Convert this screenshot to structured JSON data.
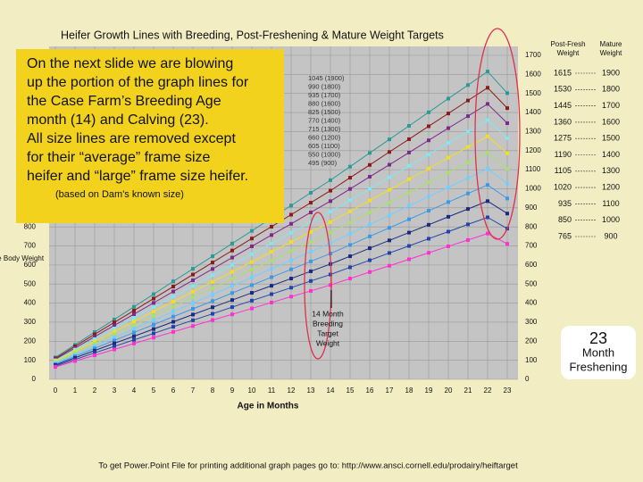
{
  "chart_data": {
    "type": "line",
    "title": "Heifer Growth Lines with Breeding, Post-Freshening & Mature Weight Targets",
    "x_label": "Age in Months",
    "y_label": "Live Body Weight",
    "x": [
      0,
      1,
      2,
      3,
      4,
      5,
      6,
      7,
      8,
      9,
      10,
      11,
      12,
      13,
      14,
      15,
      16,
      17,
      18,
      19,
      20,
      21,
      22,
      23
    ],
    "xlim": [
      0,
      23
    ],
    "xticks": [
      0,
      1,
      2,
      3,
      4,
      5,
      6,
      7,
      8,
      9,
      10,
      11,
      12,
      13,
      14,
      15,
      16,
      17,
      18,
      19,
      20,
      21,
      22,
      23
    ],
    "ylim": [
      0,
      1700
    ],
    "yticks": [
      0,
      100,
      200,
      300,
      400,
      500,
      600,
      700,
      800,
      900,
      1000,
      1100,
      1200,
      1300,
      1400,
      1500,
      1600,
      1700
    ],
    "grid": true,
    "series": [
      {
        "name": "1045 (1900)",
        "color": "#2a9a96",
        "values": [
          115,
          181,
          248,
          314,
          381,
          447,
          514,
          580,
          646,
          713,
          779,
          846,
          912,
          979,
          1045,
          1116,
          1188,
          1259,
          1330,
          1401,
          1473,
          1544,
          1615,
          1502
        ]
      },
      {
        "name": "990 (1800)",
        "color": "#8b1a1a",
        "values": [
          110,
          173,
          236,
          299,
          361,
          424,
          487,
          550,
          613,
          676,
          739,
          801,
          864,
          927,
          990,
          1058,
          1125,
          1193,
          1260,
          1328,
          1395,
          1463,
          1530,
          1423
        ]
      },
      {
        "name": "935 (1700)",
        "color": "#7a2a8a",
        "values": [
          105,
          164,
          224,
          283,
          342,
          401,
          461,
          520,
          579,
          639,
          698,
          757,
          816,
          876,
          935,
          999,
          1063,
          1126,
          1190,
          1254,
          1318,
          1381,
          1445,
          1344
        ]
      },
      {
        "name": "880 (1600)",
        "color": "#7fe8f0",
        "values": [
          100,
          156,
          211,
          267,
          323,
          379,
          434,
          490,
          546,
          601,
          657,
          713,
          769,
          824,
          880,
          940,
          1000,
          1060,
          1120,
          1180,
          1240,
          1300,
          1360,
          1265
        ]
      },
      {
        "name": "825 (1500)",
        "color": "#f0e020",
        "values": [
          95,
          147,
          199,
          251,
          304,
          356,
          408,
          460,
          512,
          564,
          616,
          669,
          721,
          773,
          825,
          881,
          938,
          994,
          1050,
          1106,
          1163,
          1219,
          1275,
          1186
        ]
      },
      {
        "name": "770 (1400)",
        "color": "#a8e070",
        "values": [
          90,
          139,
          187,
          236,
          284,
          333,
          381,
          430,
          479,
          527,
          576,
          624,
          673,
          721,
          770,
          823,
          875,
          928,
          980,
          1033,
          1085,
          1138,
          1190,
          1107
        ]
      },
      {
        "name": "715 (1300)",
        "color": "#70d0ff",
        "values": [
          85,
          130,
          175,
          220,
          265,
          310,
          355,
          400,
          445,
          490,
          535,
          580,
          625,
          670,
          715,
          764,
          813,
          861,
          910,
          959,
          1008,
          1056,
          1105,
          1028
        ]
      },
      {
        "name": "660 (1200)",
        "color": "#3a9ae8",
        "values": [
          80,
          121,
          163,
          204,
          246,
          287,
          329,
          370,
          411,
          453,
          494,
          536,
          577,
          619,
          660,
          705,
          750,
          795,
          840,
          885,
          930,
          975,
          1020,
          949
        ]
      },
      {
        "name": "605 (1100)",
        "color": "#1a2a80",
        "values": [
          75,
          113,
          151,
          189,
          226,
          264,
          302,
          340,
          378,
          416,
          454,
          491,
          529,
          567,
          605,
          646,
          688,
          729,
          770,
          811,
          853,
          894,
          935,
          870
        ]
      },
      {
        "name": "550 (1000)",
        "color": "#2244aa",
        "values": [
          70,
          104,
          139,
          173,
          207,
          241,
          276,
          310,
          344,
          379,
          413,
          447,
          481,
          516,
          550,
          588,
          625,
          663,
          700,
          738,
          775,
          813,
          850,
          791
        ]
      },
      {
        "name": "495 (900)",
        "color": "#ff30d0",
        "values": [
          65,
          96,
          126,
          157,
          188,
          219,
          249,
          280,
          311,
          341,
          372,
          403,
          434,
          464,
          495,
          529,
          563,
          596,
          630,
          664,
          698,
          731,
          765,
          711
        ]
      }
    ]
  },
  "callout": {
    "lines": [
      "On the next slide we are blowing",
      "up the portion of the graph lines for",
      "the Case Farm’s Breeding Age",
      "month (14) and Calving (23).",
      "All size lines are removed except",
      "for their “average” frame size",
      "heifer and “large” frame size heifer."
    ],
    "note": "(based on Dam's known size)"
  },
  "breeding_note": [
    "14 Month",
    "Breeding",
    "Target",
    "Weight"
  ],
  "freshening_note": [
    "23",
    "Month",
    "Freshening"
  ],
  "targets": {
    "headers": [
      [
        "Post-Fresh",
        "Weight"
      ],
      [
        "Mature",
        "Weight"
      ]
    ],
    "rows": [
      [
        "1615",
        "1900"
      ],
      [
        "1530",
        "1800"
      ],
      [
        "1445",
        "1700"
      ],
      [
        "1360",
        "1600"
      ],
      [
        "1275",
        "1500"
      ],
      [
        "1190",
        "1400"
      ],
      [
        "1105",
        "1300"
      ],
      [
        "1020",
        "1200"
      ],
      [
        "935",
        "1100"
      ],
      [
        "850",
        "1000"
      ],
      [
        "765",
        "900"
      ]
    ]
  },
  "footer": "To get Power.Point File for printing additional graph pages go to: http://www.ansci.cornell.edu/prodairy/heiftarget"
}
